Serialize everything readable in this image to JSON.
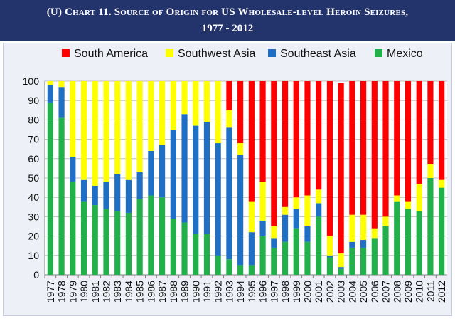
{
  "header": {
    "title_line1": "(U) Chart 11.  Source of Origin for US Wholesale-level Heroin Seizures,",
    "title_line2": "1977 - 2012",
    "background": "#23336b"
  },
  "chart_data": {
    "type": "bar",
    "stacked": true,
    "title": "(U) Chart 11. Source of Origin for US Wholesale-level Heroin Seizures, 1977 - 2012",
    "xlabel": "",
    "ylabel": "",
    "ylim": [
      0,
      100
    ],
    "yticks": [
      0,
      10,
      20,
      30,
      40,
      50,
      60,
      70,
      80,
      90,
      100
    ],
    "grid": true,
    "legend_position": "top",
    "categories": [
      "1977",
      "1978",
      "1979",
      "1980",
      "1981",
      "1982",
      "1983",
      "1984",
      "1985",
      "1986",
      "1987",
      "1988",
      "1989",
      "1990",
      "1991",
      "1992",
      "1993",
      "1994",
      "1995",
      "1996",
      "1997",
      "1998",
      "1999",
      "2000",
      "2001",
      "2002",
      "2003",
      "2004",
      "2005",
      "2006",
      "2007",
      "2008",
      "2009",
      "2010",
      "2011",
      "2012"
    ],
    "stack_order": [
      "Mexico",
      "Southeast Asia",
      "Southwest Asia",
      "South America"
    ],
    "legend_order": [
      "South America",
      "Southwest Asia",
      "Southeast Asia",
      "Mexico"
    ],
    "series": [
      {
        "name": "Mexico",
        "color": "#22b04b",
        "values": [
          89,
          81,
          48,
          38,
          36,
          34,
          33,
          32,
          39,
          41,
          40,
          29,
          27,
          21,
          21,
          10,
          8,
          5,
          5,
          20,
          14,
          17,
          24,
          17,
          30,
          9,
          3,
          14,
          14,
          19,
          25,
          38,
          34,
          33,
          50,
          45
        ]
      },
      {
        "name": "Southeast Asia",
        "color": "#1f6fc4",
        "values": [
          9,
          16,
          13,
          11,
          10,
          14,
          19,
          17,
          14,
          23,
          27,
          46,
          56,
          56,
          58,
          58,
          68,
          57,
          17,
          8,
          5,
          14,
          10,
          8,
          7,
          1,
          1,
          3,
          4,
          0,
          0,
          0,
          0,
          0,
          0,
          0
        ]
      },
      {
        "name": "Southwest Asia",
        "color": "#ffff00",
        "values": [
          2,
          3,
          39,
          51,
          54,
          52,
          48,
          51,
          47,
          36,
          33,
          25,
          17,
          23,
          21,
          32,
          9,
          6,
          16,
          20,
          6,
          4,
          6,
          16,
          7,
          10,
          7,
          14,
          13,
          5,
          5,
          3,
          4,
          14,
          7,
          4
        ]
      },
      {
        "name": "South America",
        "color": "#ff0000",
        "values": [
          0,
          0,
          0,
          0,
          0,
          0,
          0,
          0,
          0,
          0,
          0,
          0,
          0,
          0,
          0,
          0,
          15,
          32,
          62,
          52,
          75,
          65,
          60,
          59,
          56,
          80,
          88,
          69,
          69,
          76,
          70,
          59,
          62,
          53,
          43,
          51
        ]
      }
    ]
  }
}
